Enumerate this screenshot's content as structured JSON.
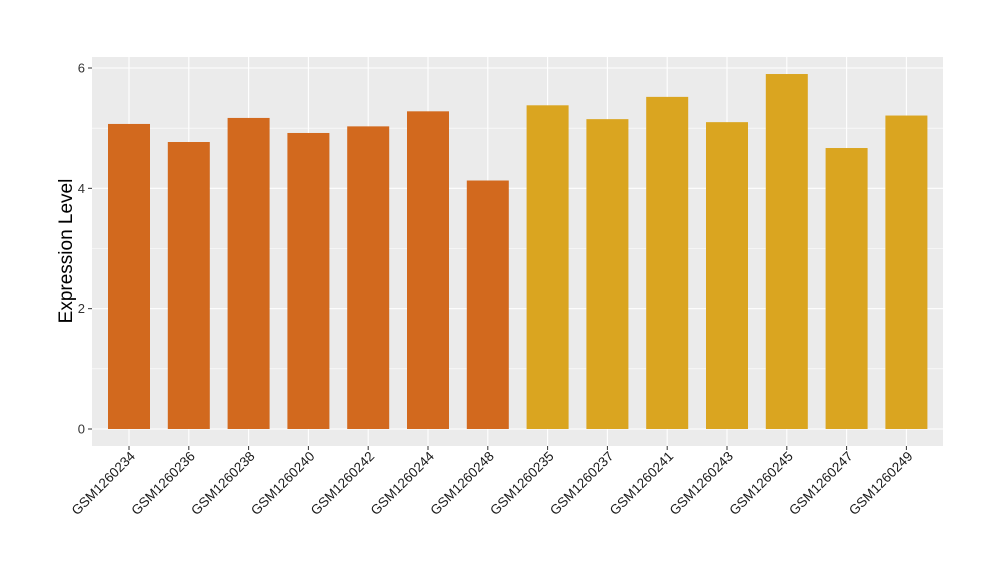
{
  "chart_data": {
    "type": "bar",
    "title": "",
    "xlabel": "",
    "ylabel": "Expression Level",
    "ylim": [
      0,
      6.3
    ],
    "yticks": [
      0,
      2,
      4,
      6
    ],
    "grid": true,
    "categories": [
      "GSM1260234",
      "GSM1260236",
      "GSM1260238",
      "GSM1260240",
      "GSM1260242",
      "GSM1260244",
      "GSM1260248",
      "GSM1260235",
      "GSM1260237",
      "GSM1260241",
      "GSM1260243",
      "GSM1260245",
      "GSM1260247",
      "GSM1260249"
    ],
    "values": [
      5.07,
      4.77,
      5.17,
      4.92,
      5.03,
      5.28,
      4.13,
      5.38,
      5.15,
      5.52,
      5.1,
      5.9,
      4.67,
      5.21
    ],
    "groups": [
      0,
      0,
      0,
      0,
      0,
      0,
      0,
      1,
      1,
      1,
      1,
      1,
      1,
      1
    ],
    "colors": {
      "group_a": "#D2691E",
      "group_b": "#DAA520",
      "panel": "#EBEBEB",
      "grid": "#FFFFFF"
    }
  }
}
